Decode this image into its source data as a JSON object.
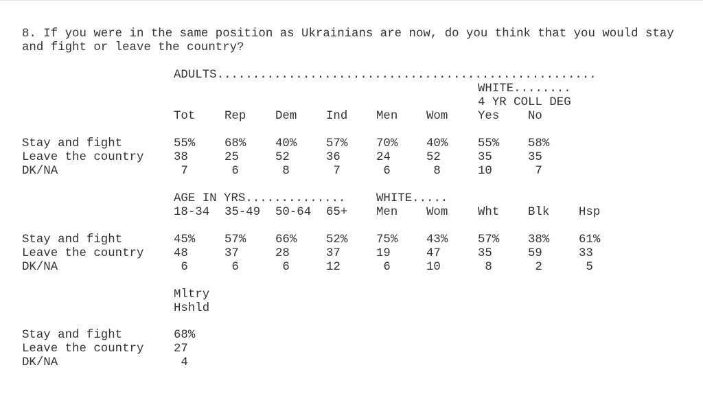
{
  "question": "8. If you were in the same position as Ukrainians are now, do you think that you would stay and fight or leave the country?",
  "tables": [
    {
      "groups": [
        "ADULTS.....................................................",
        "WHITE........",
        "4 YR COLL DEG"
      ],
      "columns": [
        "Tot",
        "Rep",
        "Dem",
        "Ind",
        "Men",
        "Wom",
        "Yes",
        "No"
      ],
      "rows": [
        {
          "label": "Stay and fight",
          "values": [
            "55%",
            "68%",
            "40%",
            "57%",
            "70%",
            "40%",
            "55%",
            "58%"
          ]
        },
        {
          "label": "Leave the country",
          "values": [
            "38",
            "25",
            "52",
            "36",
            "24",
            "52",
            "35",
            "35"
          ]
        },
        {
          "label": "DK/NA",
          "values": [
            "7",
            "6",
            "8",
            "7",
            "6",
            "8",
            "10",
            "7"
          ]
        }
      ]
    },
    {
      "groups": [
        "AGE IN YRS..............",
        "WHITE....."
      ],
      "columns": [
        "18-34",
        "35-49",
        "50-64",
        "65+",
        "Men",
        "Wom",
        "Wht",
        "Blk",
        "Hsp"
      ],
      "rows": [
        {
          "label": "Stay and fight",
          "values": [
            "45%",
            "57%",
            "66%",
            "52%",
            "75%",
            "43%",
            "57%",
            "38%",
            "61%"
          ]
        },
        {
          "label": "Leave the country",
          "values": [
            "48",
            "37",
            "28",
            "37",
            "19",
            "47",
            "35",
            "59",
            "33"
          ]
        },
        {
          "label": "DK/NA",
          "values": [
            "6",
            "6",
            "6",
            "12",
            "6",
            "10",
            "8",
            "2",
            "5"
          ]
        }
      ]
    },
    {
      "columns": [
        "Mltry Hshld"
      ],
      "rows": [
        {
          "label": "Stay and fight",
          "values": [
            "68%"
          ]
        },
        {
          "label": "Leave the country",
          "values": [
            "27"
          ]
        },
        {
          "label": "DK/NA",
          "values": [
            "4"
          ]
        }
      ]
    }
  ]
}
